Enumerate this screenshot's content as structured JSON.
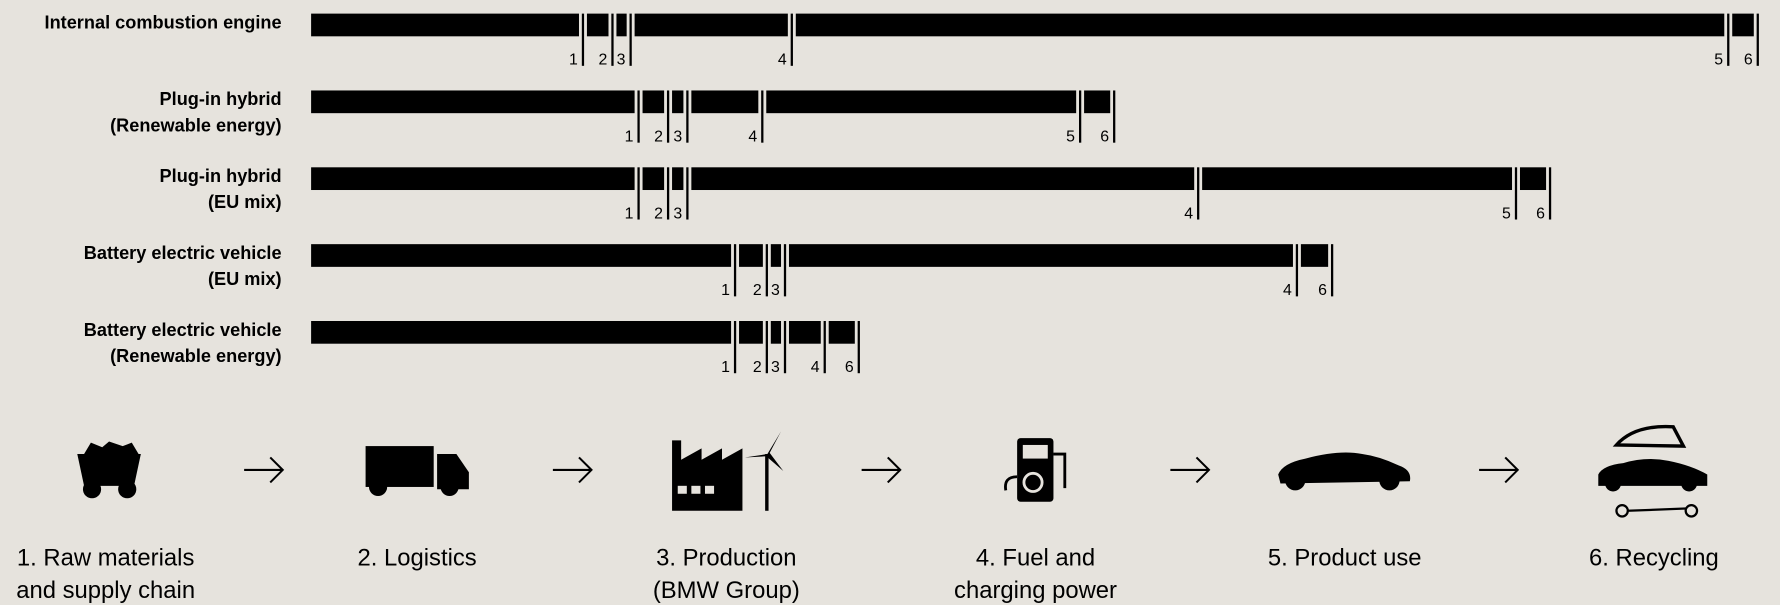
{
  "chart_data": {
    "type": "bar",
    "categories": [
      [
        "Internal combustion engine"
      ],
      [
        "Plug-in hybrid",
        "(Renewable energy)"
      ],
      [
        "Plug-in hybrid",
        "(EU mix)"
      ],
      [
        "Battery electric vehicle",
        "(EU mix)"
      ],
      [
        "Battery electric vehicle",
        "(Renewable energy)"
      ]
    ],
    "series": [
      {
        "name": "1",
        "color": "#000000",
        "values": [
          236,
          285,
          285,
          370,
          370
        ]
      },
      {
        "name": "2",
        "color": "#000000",
        "values": [
          19,
          19,
          19,
          21,
          21
        ]
      },
      {
        "name": "3",
        "color": "#000000",
        "values": [
          9,
          10,
          10,
          9,
          9
        ]
      },
      {
        "name": "4",
        "color": "#000000",
        "values": [
          135,
          59,
          443,
          444,
          28
        ]
      },
      {
        "name": "5",
        "color": "#000000",
        "values": [
          818,
          273,
          273,
          null,
          null
        ]
      },
      {
        "name": "6",
        "color": "#000000",
        "values": [
          19,
          23,
          23,
          24,
          23
        ]
      }
    ],
    "stages": [
      [
        "1. Raw materials",
        "and supply chain"
      ],
      [
        "2. Logistics"
      ],
      [
        "3. Production",
        "(BMW Group)"
      ],
      [
        "4. Fuel and",
        "charging power"
      ],
      [
        "5. Product use"
      ],
      [
        "6. Recycling"
      ]
    ]
  }
}
